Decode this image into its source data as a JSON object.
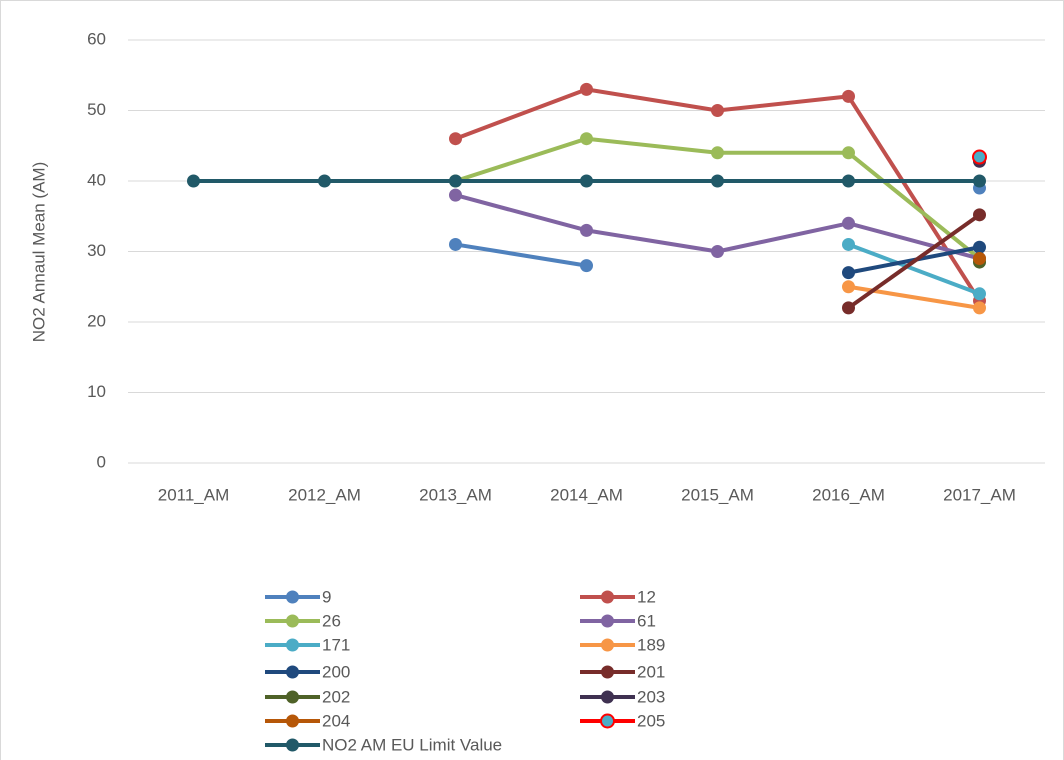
{
  "chart_data": {
    "type": "line",
    "y_label": "NO2 Annaul Mean (AM)",
    "categories": [
      "2011_AM",
      "2012_AM",
      "2013_AM",
      "2014_AM",
      "2015_AM",
      "2016_AM",
      "2017_AM"
    ],
    "ylim": [
      0,
      60
    ],
    "yticks": [
      0,
      10,
      20,
      30,
      40,
      50,
      60
    ],
    "grid": true,
    "legend": "bottom",
    "series": [
      {
        "name": "9",
        "color": "#4f81bd",
        "values": [
          null,
          null,
          31,
          28,
          null,
          null,
          39
        ]
      },
      {
        "name": "12",
        "color": "#c0504d",
        "values": [
          null,
          null,
          46,
          53,
          50,
          52,
          23
        ]
      },
      {
        "name": "26",
        "color": "#9bbb59",
        "values": [
          null,
          null,
          40,
          46,
          44,
          44,
          29
        ]
      },
      {
        "name": "61",
        "color": "#8064a2",
        "values": [
          null,
          null,
          38,
          33,
          30,
          34,
          29
        ]
      },
      {
        "name": "171",
        "color": "#4bacc6",
        "values": [
          null,
          null,
          null,
          null,
          null,
          31,
          24
        ]
      },
      {
        "name": "189",
        "color": "#f79646",
        "values": [
          null,
          null,
          null,
          null,
          null,
          25,
          22
        ]
      },
      {
        "name": "200",
        "color": "#1f497d",
        "values": [
          null,
          null,
          null,
          null,
          null,
          27,
          30.6
        ]
      },
      {
        "name": "201",
        "color": "#772c2a",
        "values": [
          null,
          null,
          null,
          null,
          null,
          22,
          35.2
        ]
      },
      {
        "name": "202",
        "color": "#4f6228",
        "values": [
          null,
          null,
          null,
          null,
          null,
          null,
          28.5
        ]
      },
      {
        "name": "203",
        "color": "#3f3151",
        "values": [
          null,
          null,
          null,
          null,
          null,
          null,
          42.8
        ]
      },
      {
        "name": "204",
        "color": "#b65708",
        "values": [
          null,
          null,
          null,
          null,
          null,
          null,
          29
        ]
      },
      {
        "name": "205",
        "color": "#ff0000",
        "marker_fill": "#4bacc6",
        "values": [
          null,
          null,
          null,
          null,
          null,
          null,
          43.4
        ]
      },
      {
        "name": "NO2 AM EU Limit Value",
        "color": "#215968",
        "values": [
          40,
          40,
          40,
          40,
          40,
          40,
          40
        ]
      }
    ]
  }
}
